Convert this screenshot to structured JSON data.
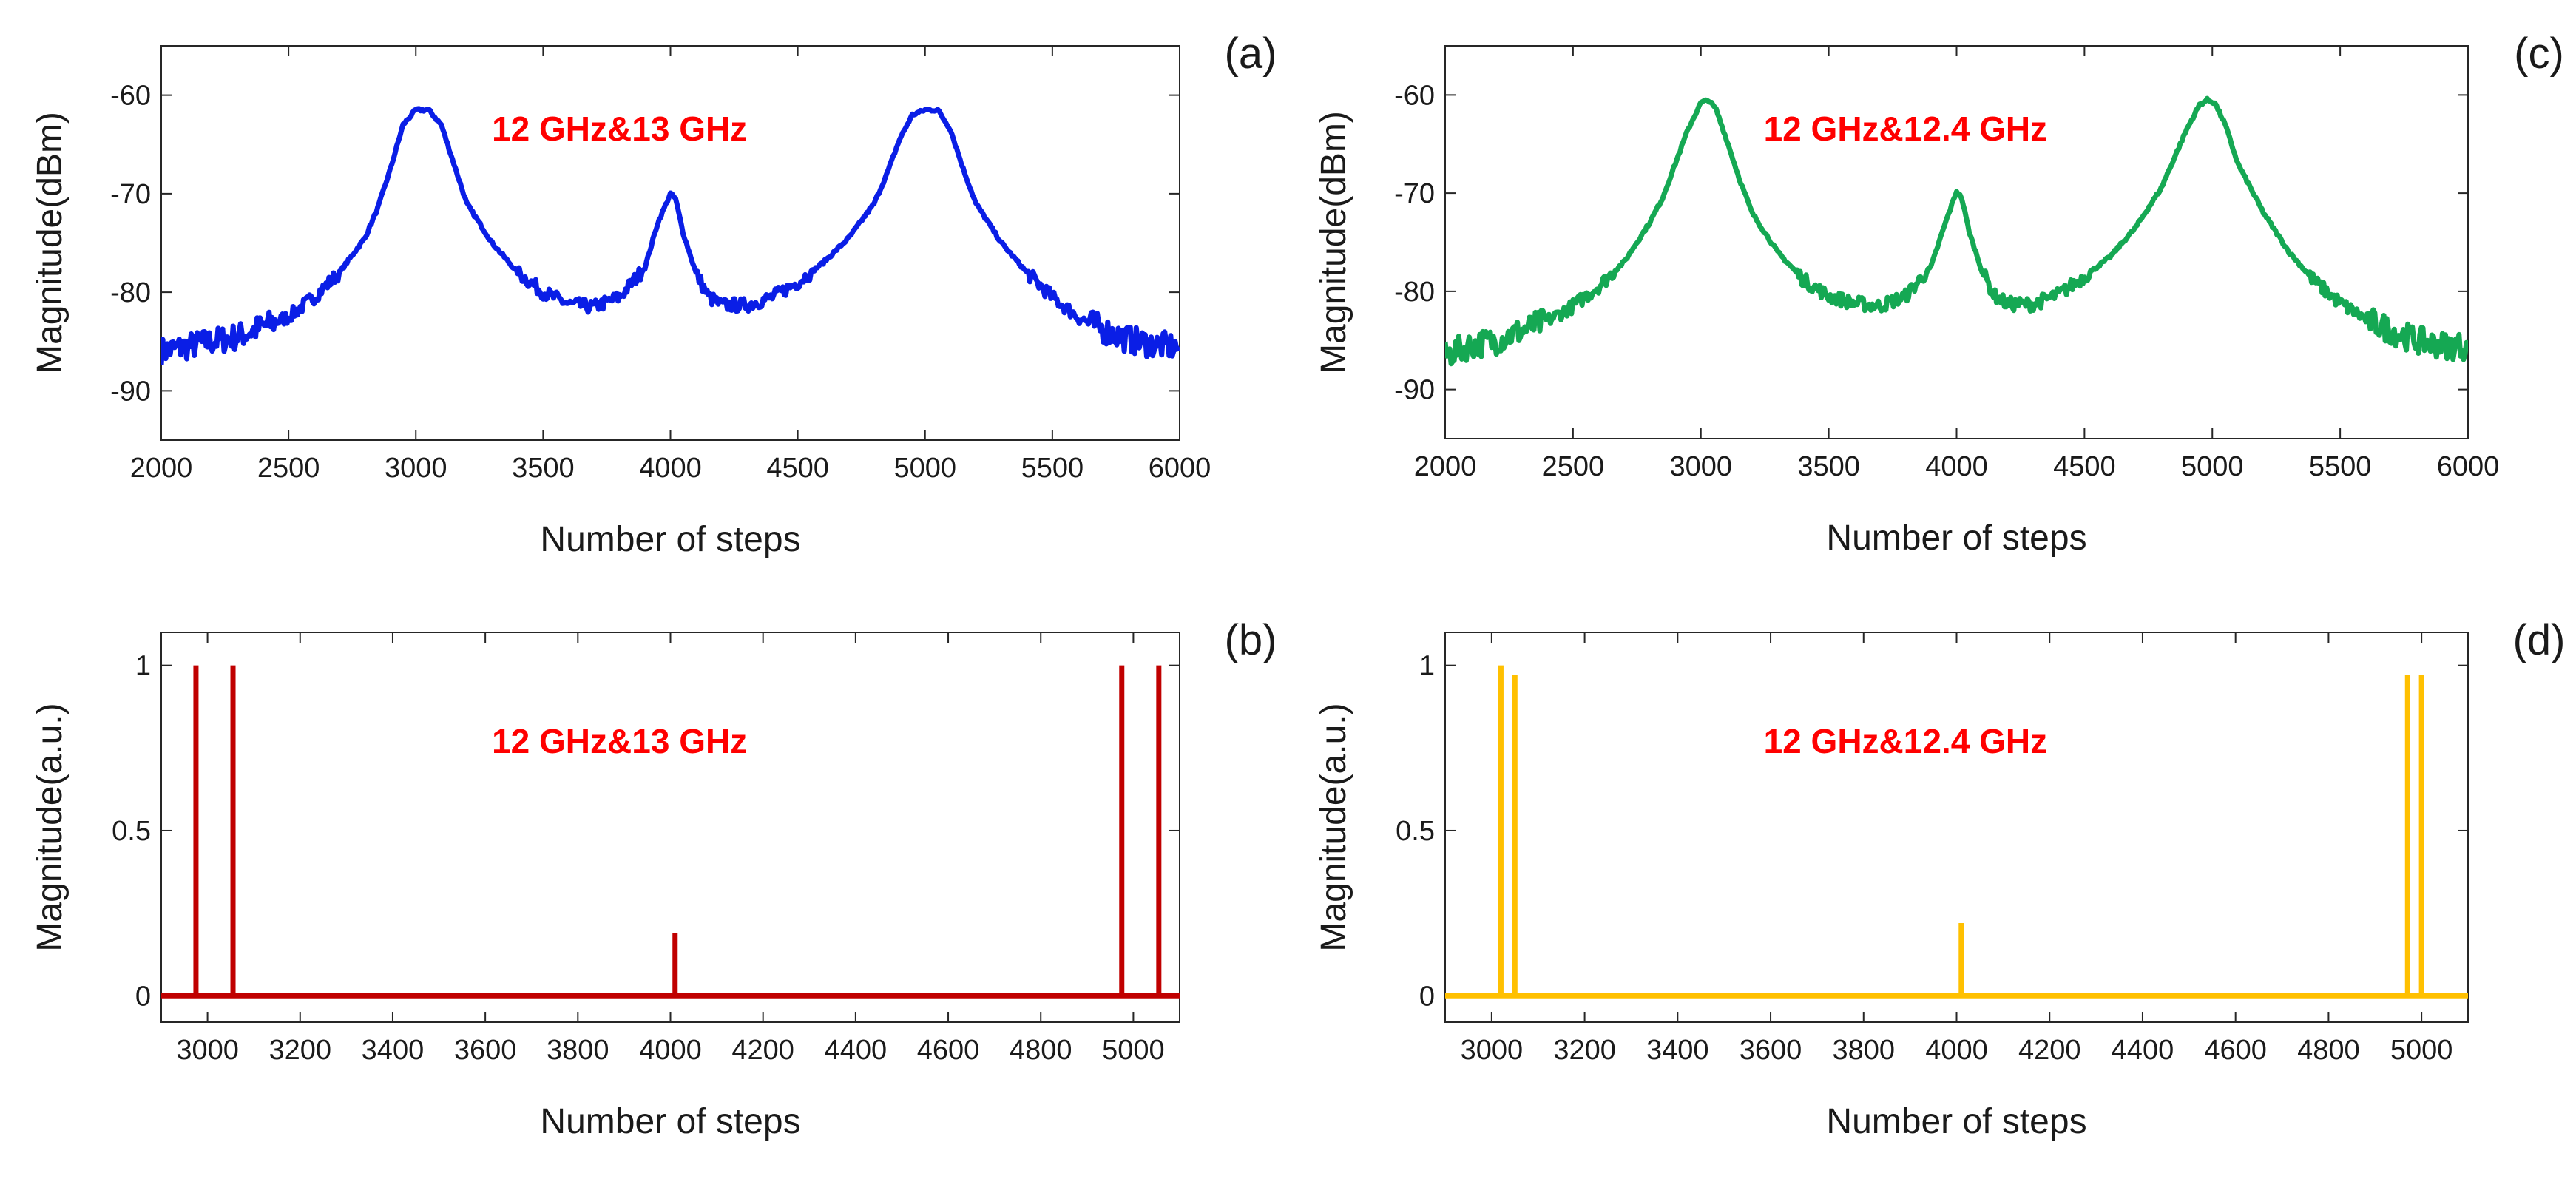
{
  "figure": {
    "background": "#ffffff"
  },
  "chart_data": [
    {
      "panel": "(a)",
      "type": "line",
      "annotation": "12 GHz&13 GHz",
      "annotation_color": "#ff0000",
      "color": "#0a1ee6",
      "xlabel": "Number of steps",
      "ylabel": "Magnitude(dBm)",
      "xlim": [
        2000,
        6000
      ],
      "ylim": [
        -95,
        -55
      ],
      "xticks": [
        2000,
        2500,
        3000,
        3500,
        4000,
        4500,
        5000,
        5500,
        6000
      ],
      "yticks": [
        -60,
        -70,
        -80,
        -90
      ],
      "series": [
        {
          "name": "spectrum",
          "x": [
            2000,
            2100,
            2200,
            2300,
            2400,
            2500,
            2600,
            2700,
            2800,
            2850,
            2900,
            2950,
            3000,
            3050,
            3100,
            3150,
            3200,
            3300,
            3400,
            3500,
            3600,
            3700,
            3800,
            3900,
            3950,
            4000,
            4020,
            4050,
            4100,
            4150,
            4200,
            4300,
            4400,
            4500,
            4600,
            4700,
            4800,
            4850,
            4900,
            4950,
            5000,
            5050,
            5100,
            5150,
            5200,
            5300,
            5400,
            5500,
            5600,
            5700,
            5800,
            5900,
            6000
          ],
          "y": [
            -86,
            -85.5,
            -85,
            -84.5,
            -83.5,
            -82.5,
            -80.5,
            -78,
            -74.5,
            -71.5,
            -67.5,
            -63,
            -61.5,
            -61.5,
            -63,
            -67,
            -71,
            -75,
            -78,
            -80,
            -81.2,
            -81.5,
            -80.5,
            -77.5,
            -73,
            -70,
            -70.5,
            -74,
            -78,
            -80.5,
            -81.3,
            -81.3,
            -80.5,
            -79,
            -77,
            -74.5,
            -71,
            -68,
            -64.5,
            -62,
            -61.5,
            -61.5,
            -63.5,
            -67.5,
            -71,
            -75,
            -78,
            -80.5,
            -82.5,
            -83.8,
            -84.8,
            -85.3,
            -85.6
          ]
        }
      ]
    },
    {
      "panel": "(b)",
      "type": "line",
      "annotation": "12 GHz&13 GHz",
      "annotation_color": "#ff0000",
      "color": "#c00000",
      "xlabel": "Number of steps",
      "ylabel": "Magnitude(a.u.)",
      "xlim": [
        2900,
        5100
      ],
      "ylim": [
        -0.08,
        1.1
      ],
      "xticks": [
        3000,
        3200,
        3400,
        3600,
        3800,
        4000,
        4200,
        4400,
        4600,
        4800,
        5000
      ],
      "yticks": [
        1,
        0.5,
        0
      ],
      "spikes": [
        {
          "x": 2975,
          "value": 1.0
        },
        {
          "x": 3055,
          "value": 1.0
        },
        {
          "x": 4010,
          "value": 0.19
        },
        {
          "x": 4975,
          "value": 1.0
        },
        {
          "x": 5055,
          "value": 1.0
        }
      ]
    },
    {
      "panel": "(c)",
      "type": "line",
      "annotation": "12 GHz&12.4 GHz",
      "annotation_color": "#ff0000",
      "color": "#15a853",
      "xlabel": "Number of steps",
      "ylabel": "Magnitude(dBm)",
      "xlim": [
        2000,
        6000
      ],
      "ylim": [
        -95,
        -55
      ],
      "xticks": [
        2000,
        2500,
        3000,
        3500,
        4000,
        4500,
        5000,
        5500,
        6000
      ],
      "yticks": [
        -60,
        -70,
        -80,
        -90
      ],
      "series": [
        {
          "name": "spectrum",
          "x": [
            2000,
            2100,
            2200,
            2300,
            2400,
            2500,
            2600,
            2700,
            2800,
            2850,
            2900,
            2950,
            3000,
            3030,
            3060,
            3100,
            3150,
            3200,
            3300,
            3400,
            3500,
            3600,
            3700,
            3800,
            3900,
            3950,
            4000,
            4020,
            4050,
            4100,
            4150,
            4200,
            4300,
            4400,
            4500,
            4600,
            4700,
            4800,
            4850,
            4900,
            4950,
            4980,
            5010,
            5050,
            5100,
            5200,
            5300,
            5400,
            5500,
            5600,
            5700,
            5800,
            5900,
            6000
          ],
          "y": [
            -86.5,
            -85.5,
            -85,
            -84,
            -83,
            -81.5,
            -79.5,
            -77,
            -73,
            -70.5,
            -67,
            -63.5,
            -60.8,
            -60.5,
            -61.5,
            -64.5,
            -68.5,
            -72,
            -76,
            -78.8,
            -80.5,
            -81.2,
            -81.5,
            -80.5,
            -77.5,
            -73.5,
            -69.8,
            -70.5,
            -74,
            -78,
            -80.5,
            -81.3,
            -81.3,
            -80.3,
            -78.5,
            -76.5,
            -73.5,
            -69.5,
            -66.5,
            -63.5,
            -61,
            -60.5,
            -60.8,
            -63,
            -67,
            -72,
            -76,
            -79,
            -81.2,
            -82.8,
            -84,
            -85,
            -85.5,
            -85.6
          ]
        }
      ]
    },
    {
      "panel": "(d)",
      "type": "line",
      "annotation": "12 GHz&12.4 GHz",
      "annotation_color": "#ff0000",
      "color": "#ffc000",
      "xlabel": "Number of steps",
      "ylabel": "Magnitude(a.u.)",
      "xlim": [
        2900,
        5100
      ],
      "ylim": [
        -0.08,
        1.1
      ],
      "xticks": [
        3000,
        3200,
        3400,
        3600,
        3800,
        4000,
        4200,
        4400,
        4600,
        4800,
        5000
      ],
      "yticks": [
        1,
        0.5,
        0
      ],
      "spikes": [
        {
          "x": 3020,
          "value": 1.0
        },
        {
          "x": 3050,
          "value": 0.97
        },
        {
          "x": 4010,
          "value": 0.22
        },
        {
          "x": 4970,
          "value": 0.97
        },
        {
          "x": 5000,
          "value": 0.97
        }
      ]
    }
  ]
}
